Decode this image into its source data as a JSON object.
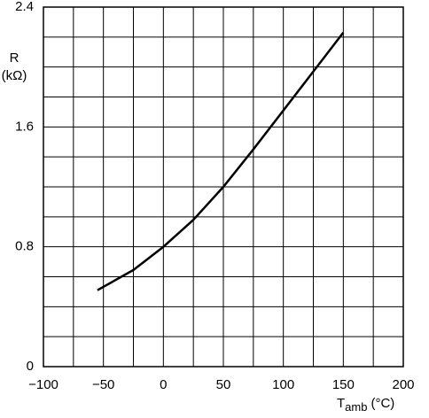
{
  "chart_data": {
    "type": "line",
    "ylabel_lines": [
      "R",
      "(kΩ)"
    ],
    "xlabel": "T",
    "xlabel_sub": "amb",
    "xlabel_unit": "(°C)",
    "x": [
      -55,
      -25,
      0,
      25,
      50,
      75,
      100,
      125,
      150
    ],
    "values": [
      0.51,
      0.645,
      0.8,
      0.98,
      1.2,
      1.45,
      1.71,
      1.97,
      2.23
    ],
    "color": "#000000",
    "xlim": [
      -100,
      200
    ],
    "xticks": [
      {
        "value": -100,
        "label": "−100"
      },
      {
        "value": -50,
        "label": "−50"
      },
      0,
      50,
      100,
      150,
      200
    ],
    "ylim": [
      0,
      2.4
    ],
    "yticks": [
      0,
      0.8,
      1.6,
      2.4
    ],
    "grid": true
  }
}
